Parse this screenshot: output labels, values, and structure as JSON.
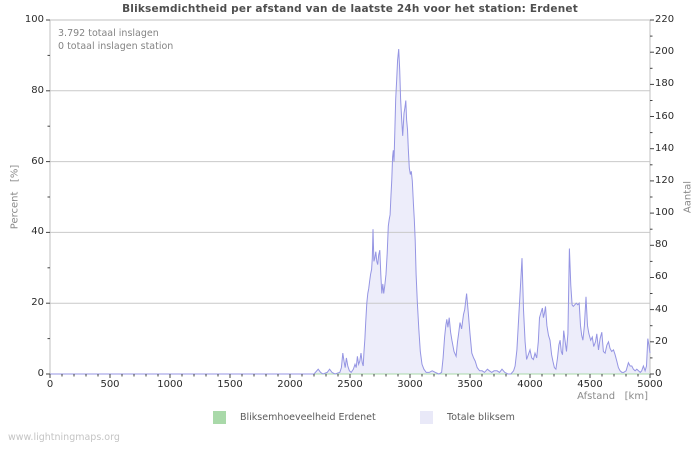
{
  "watermark": "www.lightningmaps.org",
  "chart_data": {
    "type": "area",
    "title": "Bliksemdichtheid per afstand van de laatste 24h voor het station: Erdenet",
    "annotations": [
      "3.792 totaal inslagen",
      "0 totaal inslagen station"
    ],
    "xlabel": "Afstand   [km]",
    "xlim": [
      0,
      5000
    ],
    "x_tick_major": 500,
    "x_tick_minor": 100,
    "left_axis": {
      "label": "Percent   [%]",
      "lim": [
        0,
        100
      ],
      "tick_major": 20,
      "tick_minor": 10
    },
    "right_axis": {
      "label": "Aantal",
      "lim": [
        0,
        220
      ],
      "tick_major": 20,
      "tick_minor": 10
    },
    "grid": "horizontal-only",
    "legend_position": "bottom-center",
    "colors": {
      "grid": "#c9c9c9",
      "plot_border": "#c2c2c2",
      "tick": "#444444"
    },
    "series": [
      {
        "name": "Bliksemhoeveelheid Erdenet",
        "axis": "left",
        "color": "#a9d9a9",
        "fill": "#d9efd9",
        "swatch": "#a9d9a9",
        "points": [
          [
            0,
            0
          ],
          [
            5000,
            0
          ]
        ]
      },
      {
        "name": "Totale bliksem",
        "axis": "right",
        "color": "#9595e3",
        "fill": "#ededfa",
        "swatch": "#e9e9f8",
        "points": [
          [
            0,
            0
          ],
          [
            2200,
            0
          ],
          [
            2235,
            3
          ],
          [
            2255,
            1
          ],
          [
            2275,
            0
          ],
          [
            2310,
            1
          ],
          [
            2330,
            3
          ],
          [
            2350,
            1
          ],
          [
            2375,
            0
          ],
          [
            2415,
            1
          ],
          [
            2428,
            4
          ],
          [
            2440,
            13
          ],
          [
            2450,
            8
          ],
          [
            2460,
            4
          ],
          [
            2470,
            10
          ],
          [
            2482,
            5
          ],
          [
            2495,
            2
          ],
          [
            2510,
            1
          ],
          [
            2528,
            3
          ],
          [
            2542,
            6
          ],
          [
            2552,
            4
          ],
          [
            2562,
            11
          ],
          [
            2572,
            6
          ],
          [
            2582,
            8
          ],
          [
            2592,
            13
          ],
          [
            2602,
            7
          ],
          [
            2610,
            5
          ],
          [
            2617,
            14
          ],
          [
            2624,
            22
          ],
          [
            2631,
            32
          ],
          [
            2640,
            44
          ],
          [
            2648,
            50
          ],
          [
            2656,
            53
          ],
          [
            2664,
            58
          ],
          [
            2672,
            62
          ],
          [
            2680,
            65
          ],
          [
            2686,
            72
          ],
          [
            2692,
            90
          ],
          [
            2699,
            70
          ],
          [
            2707,
            72
          ],
          [
            2715,
            76
          ],
          [
            2723,
            70
          ],
          [
            2731,
            68
          ],
          [
            2739,
            74
          ],
          [
            2748,
            77
          ],
          [
            2757,
            62
          ],
          [
            2765,
            50
          ],
          [
            2773,
            56
          ],
          [
            2781,
            50
          ],
          [
            2790,
            55
          ],
          [
            2800,
            62
          ],
          [
            2810,
            75
          ],
          [
            2819,
            92
          ],
          [
            2827,
            96
          ],
          [
            2834,
            99
          ],
          [
            2841,
            110
          ],
          [
            2848,
            121
          ],
          [
            2855,
            135
          ],
          [
            2861,
            139
          ],
          [
            2867,
            132
          ],
          [
            2873,
            150
          ],
          [
            2881,
            171
          ],
          [
            2889,
            183
          ],
          [
            2897,
            195
          ],
          [
            2906,
            202
          ],
          [
            2914,
            189
          ],
          [
            2922,
            171
          ],
          [
            2931,
            158
          ],
          [
            2939,
            148
          ],
          [
            2950,
            162
          ],
          [
            2958,
            166
          ],
          [
            2965,
            170
          ],
          [
            2972,
            158
          ],
          [
            2979,
            152
          ],
          [
            2986,
            140
          ],
          [
            2994,
            128
          ],
          [
            3003,
            124
          ],
          [
            3011,
            126
          ],
          [
            3019,
            120
          ],
          [
            3028,
            106
          ],
          [
            3036,
            96
          ],
          [
            3043,
            83
          ],
          [
            3051,
            62
          ],
          [
            3061,
            45
          ],
          [
            3073,
            28
          ],
          [
            3086,
            14
          ],
          [
            3100,
            6
          ],
          [
            3116,
            3
          ],
          [
            3135,
            1
          ],
          [
            3160,
            1
          ],
          [
            3185,
            2
          ],
          [
            3212,
            1
          ],
          [
            3240,
            0
          ],
          [
            3263,
            1
          ],
          [
            3276,
            10
          ],
          [
            3288,
            23
          ],
          [
            3298,
            30
          ],
          [
            3307,
            34
          ],
          [
            3316,
            29
          ],
          [
            3327,
            35
          ],
          [
            3338,
            26
          ],
          [
            3349,
            21
          ],
          [
            3367,
            14
          ],
          [
            3384,
            11
          ],
          [
            3396,
            20
          ],
          [
            3405,
            25
          ],
          [
            3417,
            32
          ],
          [
            3430,
            28
          ],
          [
            3446,
            37
          ],
          [
            3456,
            40
          ],
          [
            3472,
            50
          ],
          [
            3486,
            38
          ],
          [
            3500,
            25
          ],
          [
            3515,
            13
          ],
          [
            3530,
            10
          ],
          [
            3543,
            8
          ],
          [
            3560,
            4
          ],
          [
            3580,
            2
          ],
          [
            3601,
            2
          ],
          [
            3621,
            1
          ],
          [
            3645,
            3
          ],
          [
            3662,
            2
          ],
          [
            3681,
            1
          ],
          [
            3701,
            2
          ],
          [
            3726,
            2
          ],
          [
            3746,
            1
          ],
          [
            3767,
            3
          ],
          [
            3790,
            1
          ],
          [
            3816,
            0
          ],
          [
            3841,
            0
          ],
          [
            3863,
            2
          ],
          [
            3876,
            5
          ],
          [
            3891,
            15
          ],
          [
            3906,
            35
          ],
          [
            3921,
            55
          ],
          [
            3933,
            72
          ],
          [
            3946,
            40
          ],
          [
            3959,
            20
          ],
          [
            3972,
            9
          ],
          [
            3986,
            12
          ],
          [
            4000,
            15
          ],
          [
            4014,
            10
          ],
          [
            4028,
            9
          ],
          [
            4042,
            13
          ],
          [
            4056,
            10
          ],
          [
            4069,
            20
          ],
          [
            4079,
            35
          ],
          [
            4091,
            38
          ],
          [
            4103,
            41
          ],
          [
            4112,
            35
          ],
          [
            4121,
            38
          ],
          [
            4129,
            42
          ],
          [
            4141,
            30
          ],
          [
            4154,
            24
          ],
          [
            4167,
            21
          ],
          [
            4180,
            12
          ],
          [
            4191,
            8
          ],
          [
            4203,
            4
          ],
          [
            4216,
            3
          ],
          [
            4229,
            10
          ],
          [
            4241,
            18
          ],
          [
            4251,
            21
          ],
          [
            4261,
            14
          ],
          [
            4271,
            12
          ],
          [
            4281,
            27
          ],
          [
            4293,
            20
          ],
          [
            4304,
            14
          ],
          [
            4316,
            25
          ],
          [
            4328,
            78
          ],
          [
            4340,
            55
          ],
          [
            4351,
            43
          ],
          [
            4361,
            42
          ],
          [
            4373,
            43
          ],
          [
            4386,
            44
          ],
          [
            4398,
            43
          ],
          [
            4410,
            44
          ],
          [
            4421,
            30
          ],
          [
            4431,
            24
          ],
          [
            4441,
            21
          ],
          [
            4453,
            30
          ],
          [
            4467,
            48
          ],
          [
            4479,
            30
          ],
          [
            4491,
            25
          ],
          [
            4506,
            21
          ],
          [
            4519,
            23
          ],
          [
            4531,
            17
          ],
          [
            4546,
            20
          ],
          [
            4557,
            25
          ],
          [
            4571,
            15
          ],
          [
            4584,
            22
          ],
          [
            4598,
            26
          ],
          [
            4612,
            14
          ],
          [
            4626,
            13
          ],
          [
            4641,
            18
          ],
          [
            4654,
            20
          ],
          [
            4667,
            16
          ],
          [
            4681,
            14
          ],
          [
            4696,
            15
          ],
          [
            4709,
            12
          ],
          [
            4723,
            8
          ],
          [
            4737,
            4
          ],
          [
            4751,
            2
          ],
          [
            4766,
            1
          ],
          [
            4781,
            1
          ],
          [
            4801,
            2
          ],
          [
            4820,
            7
          ],
          [
            4834,
            5
          ],
          [
            4848,
            5
          ],
          [
            4862,
            3
          ],
          [
            4876,
            2
          ],
          [
            4890,
            3
          ],
          [
            4904,
            2
          ],
          [
            4918,
            1
          ],
          [
            4931,
            2
          ],
          [
            4945,
            5
          ],
          [
            4959,
            2
          ],
          [
            4971,
            5
          ],
          [
            4982,
            22
          ],
          [
            4991,
            18
          ],
          [
            5000,
            13
          ]
        ]
      }
    ]
  }
}
